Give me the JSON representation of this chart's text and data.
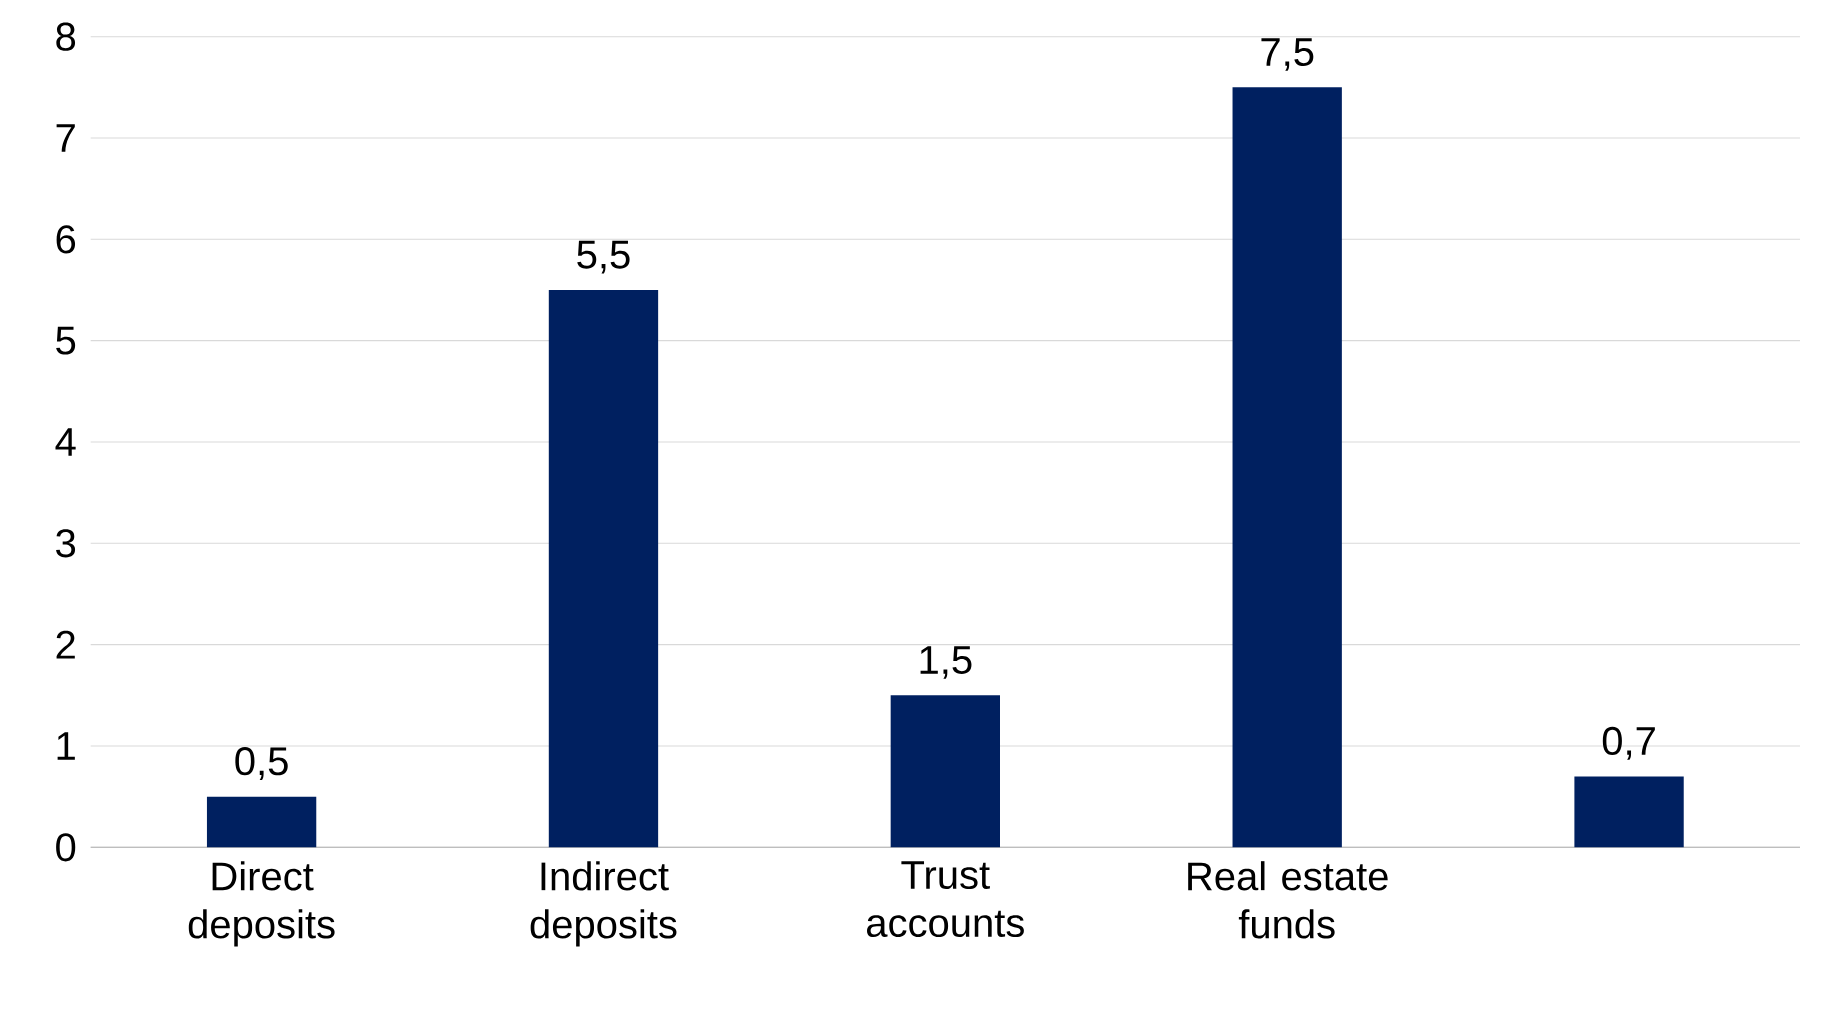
{
  "chart_data": {
    "type": "bar",
    "categories": [
      "Direct deposits",
      "Indirect deposits",
      "Trust accounts",
      "Real estate funds",
      null
    ],
    "values": [
      0.5,
      5.5,
      1.5,
      7.5,
      0.7
    ],
    "value_labels": [
      "0,5",
      "5,5",
      "1,5",
      "7,5",
      "0,7"
    ],
    "color": "#002060",
    "ylim": [
      0,
      8
    ],
    "yticks": [
      0,
      1,
      2,
      3,
      4,
      5,
      6,
      7,
      8
    ],
    "grid": "y"
  }
}
